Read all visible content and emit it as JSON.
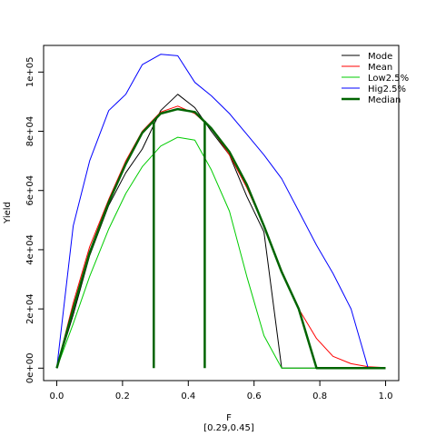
{
  "chart_data": {
    "type": "line",
    "xlabel": "F",
    "sublabel": "[0.29,0.45]",
    "ylabel": "Yield",
    "xlim": [
      -0.04,
      1.04
    ],
    "ylim": [
      -4200,
      109000
    ],
    "x_ticks": [
      0.0,
      0.2,
      0.4,
      0.6,
      0.8,
      1.0
    ],
    "x_tick_labels": [
      "0.0",
      "0.2",
      "0.4",
      "0.6",
      "0.8",
      "1.0"
    ],
    "y_ticks": [
      0,
      20000,
      40000,
      60000,
      80000,
      100000
    ],
    "y_tick_labels": [
      "0e+00",
      "2e+04",
      "4e+04",
      "6e+04",
      "8e+04",
      "1e+05"
    ],
    "legend_position": "top-right",
    "series": [
      {
        "name": "Mode",
        "color": "#000000",
        "width": 1,
        "x": [
          0.0,
          0.05,
          0.1,
          0.158,
          0.21,
          0.26,
          0.316,
          0.368,
          0.42,
          0.47,
          0.525,
          0.578,
          0.63,
          0.684,
          0.736,
          0.79,
          0.84,
          0.895,
          0.947,
          1.0
        ],
        "y": [
          0,
          18000,
          38000,
          55000,
          66000,
          74000,
          87000,
          92500,
          88000,
          80000,
          72000,
          58000,
          46000,
          0,
          0,
          0,
          0,
          0,
          0,
          0
        ]
      },
      {
        "name": "Mean",
        "color": "#ff0000",
        "width": 1,
        "x": [
          0.0,
          0.05,
          0.1,
          0.158,
          0.21,
          0.26,
          0.316,
          0.368,
          0.42,
          0.47,
          0.525,
          0.578,
          0.63,
          0.684,
          0.736,
          0.79,
          0.84,
          0.895,
          0.947,
          1.0
        ],
        "y": [
          0,
          22000,
          41000,
          57000,
          70000,
          80000,
          86500,
          88500,
          86000,
          81000,
          72000,
          61000,
          48000,
          33000,
          20000,
          10000,
          4000,
          1500,
          500,
          200
        ]
      },
      {
        "name": "Low2.5%",
        "color": "#00cc00",
        "width": 1,
        "x": [
          0.0,
          0.05,
          0.1,
          0.158,
          0.21,
          0.26,
          0.316,
          0.368,
          0.42,
          0.47,
          0.525,
          0.578,
          0.63,
          0.684,
          0.736,
          0.79,
          0.84,
          0.895,
          0.947,
          1.0
        ],
        "y": [
          0,
          15000,
          31000,
          47000,
          59000,
          68000,
          75000,
          78000,
          77000,
          67000,
          53000,
          31000,
          11000,
          0,
          0,
          0,
          0,
          0,
          0,
          0
        ]
      },
      {
        "name": "Hig2.5%",
        "color": "#0000ff",
        "width": 1,
        "x": [
          0.0,
          0.05,
          0.1,
          0.158,
          0.21,
          0.26,
          0.316,
          0.368,
          0.42,
          0.47,
          0.525,
          0.578,
          0.63,
          0.684,
          0.736,
          0.79,
          0.84,
          0.895,
          0.947,
          1.0
        ],
        "y": [
          0,
          48000,
          70000,
          87000,
          92500,
          102500,
          106000,
          105500,
          96500,
          92000,
          86000,
          79000,
          72000,
          64000,
          53000,
          41500,
          32000,
          20000,
          0,
          0
        ]
      },
      {
        "name": "Median",
        "color": "#006400",
        "width": 2.5,
        "x": [
          0.0,
          0.05,
          0.1,
          0.158,
          0.21,
          0.26,
          0.316,
          0.368,
          0.42,
          0.47,
          0.525,
          0.578,
          0.63,
          0.684,
          0.736,
          0.79,
          0.84,
          0.895,
          0.947,
          1.0
        ],
        "y": [
          0,
          20000,
          39000,
          56000,
          69000,
          79500,
          86000,
          87500,
          86500,
          81000,
          73000,
          62000,
          48000,
          32500,
          20000,
          0,
          0,
          0,
          0,
          0
        ]
      }
    ],
    "vertical_lines": [
      {
        "x": 0.295,
        "y_from": 0,
        "y_to": 83000,
        "color": "#006400"
      },
      {
        "x": 0.45,
        "y_from": 0,
        "y_to": 83500,
        "color": "#006400"
      }
    ]
  }
}
